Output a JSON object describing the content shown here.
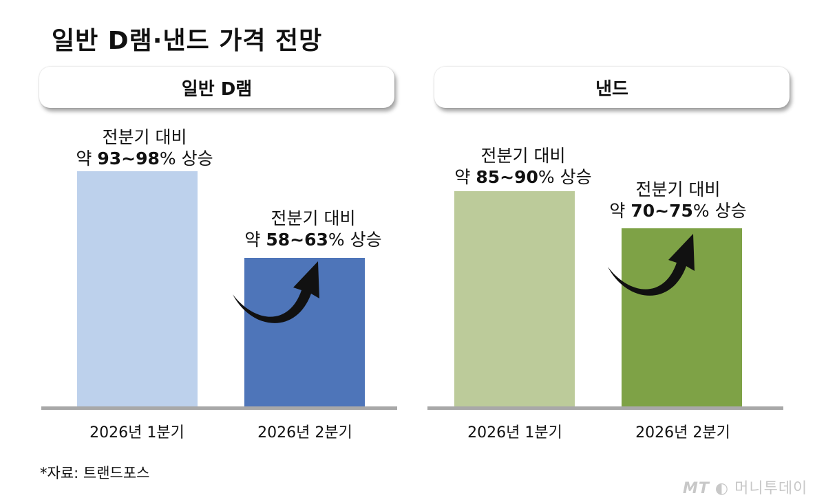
{
  "title": "일반 D램·낸드 가격 전망",
  "source": "*자료: 트랜드포스",
  "watermark": {
    "mt": "MT",
    "name": "머니투데이"
  },
  "chart_data": [
    {
      "type": "bar",
      "title": "일반 D램",
      "categories": [
        "2026년 1분기",
        "2026년 2분기"
      ],
      "values": [
        95.5,
        60.5
      ],
      "colors": [
        "#bdd1ec",
        "#4e75b9"
      ],
      "annotations": [
        {
          "line1": "전분기 대비",
          "prefix": "약 ",
          "range": "93~98",
          "suffix": "% 상승",
          "low": 93,
          "high": 98
        },
        {
          "line1": "전분기 대비",
          "prefix": "약 ",
          "range": "58~63",
          "suffix": "% 상승",
          "low": 58,
          "high": 63
        }
      ],
      "ylim": [
        0,
        100
      ]
    },
    {
      "type": "bar",
      "title": "낸드",
      "categories": [
        "2026년 1분기",
        "2026년 2분기"
      ],
      "values": [
        87.5,
        72.5
      ],
      "colors": [
        "#bccb9a",
        "#7ea246"
      ],
      "annotations": [
        {
          "line1": "전분기 대비",
          "prefix": "약 ",
          "range": "85~90",
          "suffix": "% 상승",
          "low": 85,
          "high": 90
        },
        {
          "line1": "전분기 대비",
          "prefix": "약 ",
          "range": "70~75",
          "suffix": "% 상승",
          "low": 70,
          "high": 75
        }
      ],
      "ylim": [
        0,
        100
      ]
    }
  ]
}
